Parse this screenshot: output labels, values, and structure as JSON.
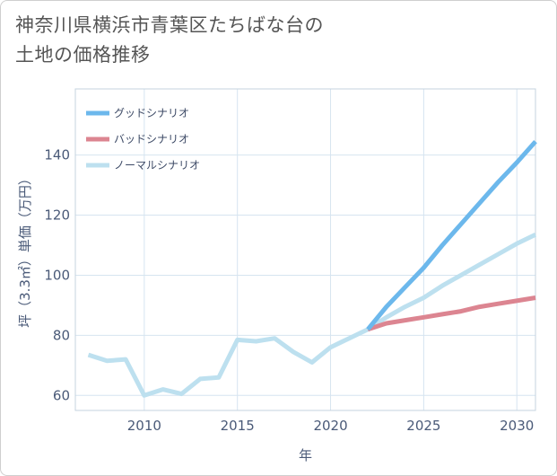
{
  "title": {
    "line1": "神奈川県横浜市青葉区たちばな台の",
    "line2": "土地の価格推移"
  },
  "chart_data": {
    "type": "line",
    "xlabel": "年",
    "ylabel": "坪（3.3㎡）単価（万円）",
    "xlim": [
      2006.3,
      2031
    ],
    "ylim": [
      55,
      162
    ],
    "xticks": [
      2010,
      2015,
      2020,
      2025,
      2030
    ],
    "yticks": [
      60,
      80,
      100,
      120,
      140
    ],
    "grid": true,
    "legend_position": "top-left",
    "colors": {
      "good": "#6cb8ec",
      "bad": "#dc8591",
      "normal": "#bde0ef",
      "grid": "#d6e4f0",
      "axis_text": "#4a5a78"
    },
    "series": [
      {
        "name": "グッドシナリオ",
        "key": "good",
        "x": [
          2022,
          2023,
          2024,
          2025,
          2026,
          2027,
          2028,
          2029,
          2030,
          2031
        ],
        "values": [
          82,
          89.5,
          96,
          102.5,
          110,
          117,
          124,
          131,
          137.5,
          144.5
        ]
      },
      {
        "name": "バッドシナリオ",
        "key": "bad",
        "x": [
          2022,
          2023,
          2024,
          2025,
          2026,
          2027,
          2028,
          2029,
          2030,
          2031
        ],
        "values": [
          82,
          84,
          85,
          86,
          87,
          88,
          89.5,
          90.5,
          91.5,
          92.5
        ]
      },
      {
        "name": "ノーマルシナリオ",
        "key": "normal",
        "x": [
          2007,
          2008,
          2009,
          2010,
          2011,
          2012,
          2013,
          2014,
          2015,
          2016,
          2017,
          2018,
          2019,
          2020,
          2021,
          2022,
          2023,
          2024,
          2025,
          2026,
          2027,
          2028,
          2029,
          2030,
          2031
        ],
        "values": [
          73.5,
          71.5,
          72,
          60,
          62,
          60.5,
          65.5,
          66,
          78.5,
          78,
          79,
          74.5,
          71,
          76,
          79,
          82,
          86,
          89.5,
          92.5,
          96.5,
          100,
          103.5,
          107,
          110.5,
          113.5
        ]
      }
    ]
  }
}
